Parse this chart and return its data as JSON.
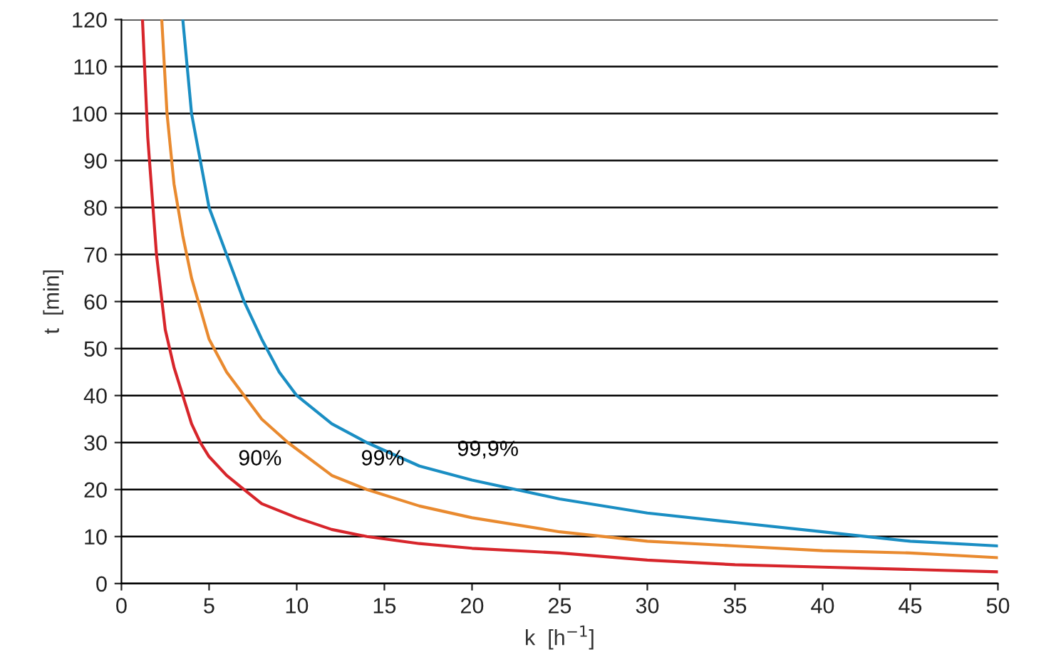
{
  "chart_data": {
    "type": "line",
    "xlabel": "k  [h$^{−1}$]",
    "ylabel": "t  [min]",
    "xlim": [
      0,
      50
    ],
    "ylim": [
      0,
      120
    ],
    "xticks": [
      0,
      5,
      10,
      15,
      20,
      25,
      30,
      35,
      40,
      45,
      50
    ],
    "yticks": [
      0,
      10,
      20,
      30,
      40,
      50,
      60,
      70,
      80,
      90,
      100,
      110,
      120
    ],
    "grid": "y",
    "marker": "none",
    "line_style": "solid",
    "series": [
      {
        "color": "#d7252b",
        "x": [
          1.2,
          1.5,
          2,
          2.5,
          3,
          3.5,
          4,
          4.5,
          5,
          6,
          7,
          8,
          10,
          12,
          14,
          17,
          20,
          25,
          30,
          35,
          40,
          45,
          50
        ],
        "values": [
          120,
          95,
          70,
          54,
          46,
          40,
          34,
          30,
          27,
          23,
          20,
          17,
          14,
          11.5,
          10,
          8.5,
          7.5,
          6.5,
          5,
          4,
          3.5,
          3,
          2.5
        ]
      },
      {
        "color": "#e98a2f",
        "x": [
          2.3,
          2.6,
          3,
          3.5,
          4,
          5,
          6,
          7,
          8,
          9.5,
          12,
          14,
          17,
          20,
          25,
          30,
          35,
          40,
          45,
          50
        ],
        "values": [
          120,
          100,
          85,
          74,
          65,
          52,
          45,
          40,
          35,
          30,
          23,
          20,
          16.5,
          14,
          11,
          9,
          8,
          7,
          6.5,
          5.5
        ]
      },
      {
        "color": "#1a8ec3",
        "x": [
          3.5,
          4,
          4.5,
          5,
          6,
          7,
          8,
          9,
          10,
          12,
          14,
          17,
          20,
          25,
          30,
          35,
          40,
          45,
          50
        ],
        "values": [
          120,
          100,
          90,
          80,
          70,
          60,
          52,
          45,
          40,
          34,
          30,
          25,
          22,
          18,
          15,
          13,
          11,
          9,
          8
        ]
      }
    ],
    "annotations": [
      {
        "text": "90%",
        "x": 7,
        "y": 20
      },
      {
        "text": "99%",
        "x": 14,
        "y": 20
      },
      {
        "text": "99,9%",
        "x": 20,
        "y": 22
      }
    ]
  }
}
